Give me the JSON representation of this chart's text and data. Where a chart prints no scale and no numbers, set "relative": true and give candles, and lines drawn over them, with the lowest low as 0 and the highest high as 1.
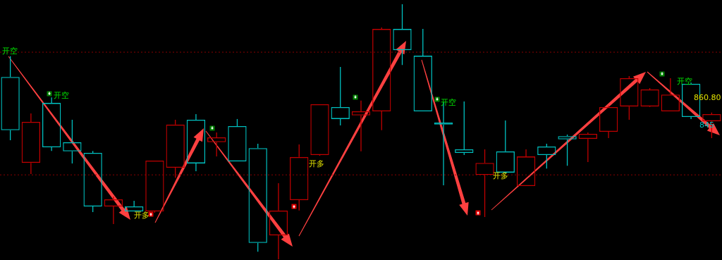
{
  "chart_data": {
    "type": "candlestick",
    "relative": true,
    "categories": [
      null,
      null,
      null,
      null,
      null,
      null,
      null,
      null,
      null,
      null,
      null,
      null,
      null,
      null,
      null,
      null,
      null,
      null,
      null,
      null,
      null,
      null,
      null,
      null,
      null,
      null,
      null,
      null,
      null,
      null,
      null,
      null,
      null,
      null,
      null
    ],
    "ohlc": [
      [
        0.715,
        0.796,
        0.467,
        0.506
      ],
      [
        0.378,
        0.572,
        0.334,
        0.539
      ],
      [
        0.613,
        0.635,
        0.425,
        0.439
      ],
      [
        0.459,
        0.547,
        0.376,
        0.423
      ],
      [
        0.417,
        0.425,
        0.185,
        0.207
      ],
      [
        0.207,
        0.246,
        0.138,
        0.235
      ],
      [
        0.207,
        0.229,
        0.188,
        0.188
      ],
      [
        0.188,
        0.387,
        0.182,
        0.387
      ],
      [
        0.359,
        0.547,
        0.32,
        0.528
      ],
      [
        0.547,
        0.569,
        0.345,
        0.376
      ],
      [
        0.459,
        0.497,
        0.403,
        0.478
      ],
      [
        0.522,
        0.55,
        0.384,
        0.384
      ],
      [
        0.436,
        0.453,
        0.03,
        0.064
      ],
      [
        0.094,
        0.298,
        0,
        0.191
      ],
      [
        0.232,
        0.45,
        0.191,
        0.401
      ],
      [
        0.409,
        0.608,
        0.406,
        0.608
      ],
      [
        0.597,
        0.754,
        0.525,
        0.55
      ],
      [
        0.564,
        0.622,
        0.423,
        0.58
      ],
      [
        0.58,
        0.909,
        0.506,
        0.903
      ],
      [
        0.903,
        1,
        0.762,
        0.82
      ],
      [
        0.798,
        0.903,
        0.58,
        0.58
      ],
      [
        0.536,
        0.616,
        0.29,
        0.528
      ],
      [
        0.431,
        0.619,
        0.409,
        0.417
      ],
      [
        0.331,
        0.431,
        0.166,
        0.378
      ],
      [
        0.423,
        0.544,
        0.337,
        0.34
      ],
      [
        0.287,
        0.431,
        0.287,
        0.403
      ],
      [
        0.442,
        0.453,
        0.356,
        0.409
      ],
      [
        0.483,
        0.489,
        0.367,
        0.47
      ],
      [
        0.472,
        0.497,
        0.381,
        0.492
      ],
      [
        0.5,
        0.602,
        0.475,
        0.597
      ],
      [
        0.599,
        0.718,
        0.547,
        0.71
      ],
      [
        0.599,
        0.671,
        0.597,
        0.666
      ],
      [
        0.58,
        0.71,
        0.58,
        0.646
      ],
      [
        0.688,
        0.693,
        0.55,
        0.558
      ],
      [
        0.541,
        0.575,
        0.475,
        0.569
      ]
    ],
    "colors": [
      "#00c0c0",
      "#c00000",
      "#00c0c0",
      "#00c0c0",
      "#00c0c0",
      "#c00000",
      "#00c0c0",
      "#c00000",
      "#c00000",
      "#00c0c0",
      "#c00000",
      "#00c0c0",
      "#00c0c0",
      "#c00000",
      "#c00000",
      "#c00000",
      "#00c0c0",
      "#c00000",
      "#c00000",
      "#00c0c0",
      "#00c0c0",
      "#00c0c0",
      "#00c0c0",
      "#c00000",
      "#00c0c0",
      "#c00000",
      "#00c0c0",
      "#00c0c0",
      "#c00000",
      "#c00000",
      "#c00000",
      "#c00000",
      "#c00000",
      "#00c0c0",
      "#c00000"
    ],
    "ref_lines": [
      {
        "axis": "y",
        "value": 0.812,
        "color": "#8b0000",
        "line_style": "dotted"
      },
      {
        "axis": "y",
        "value": 0.331,
        "color": "#8b0000",
        "line_style": "dotted"
      }
    ],
    "annotations": [
      "开空",
      "开空",
      "开多",
      "开多",
      "开空",
      "开多",
      "开空",
      "860.80",
      "845"
    ]
  }
}
